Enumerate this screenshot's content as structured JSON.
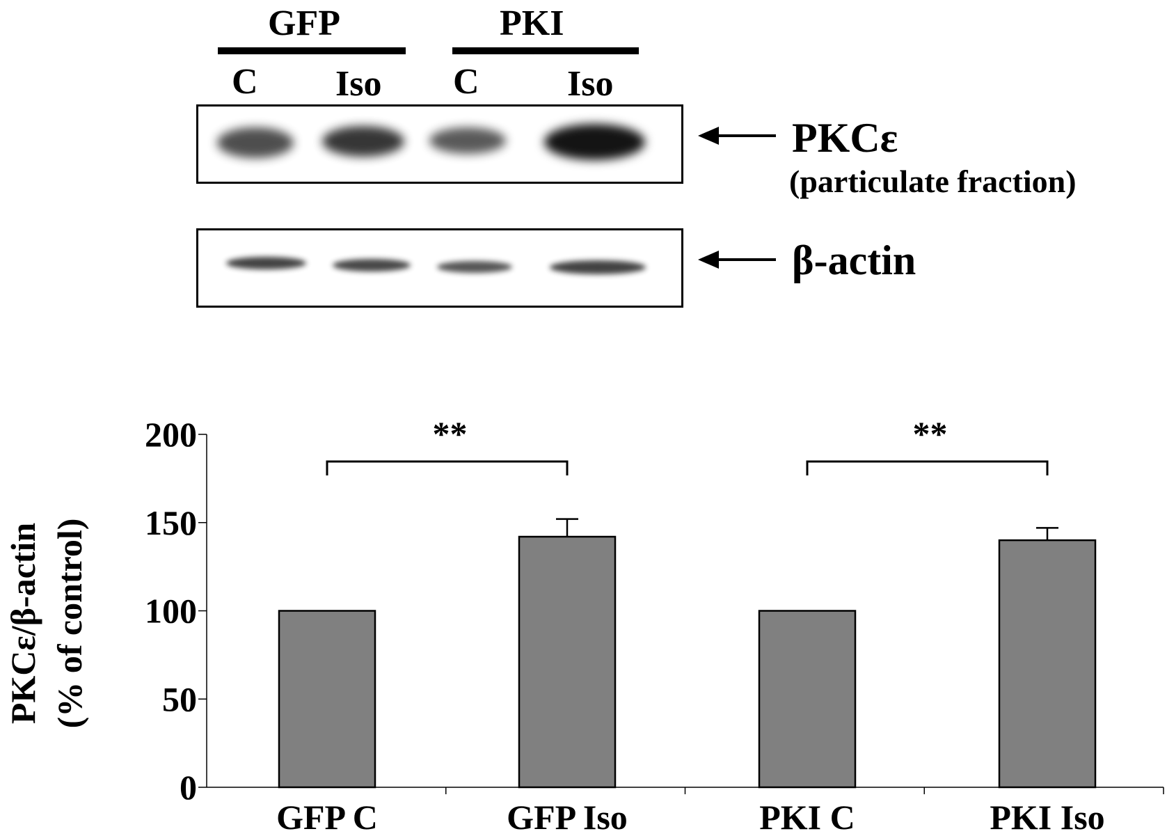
{
  "blot": {
    "groups": [
      {
        "label": "GFP"
      },
      {
        "label": "PKI"
      }
    ],
    "lanes": [
      "C",
      "Iso",
      "C",
      "Iso"
    ],
    "panels": [
      {
        "protein": "PKCε",
        "sublabel": "(particulate fraction)",
        "band_intensity": [
          0.75,
          0.85,
          0.7,
          1.0
        ]
      },
      {
        "protein": "β-actin",
        "sublabel": "",
        "band_intensity": [
          0.8,
          0.78,
          0.72,
          0.8
        ]
      }
    ]
  },
  "chart_data": {
    "type": "bar",
    "categories": [
      "GFP C",
      "GFP Iso",
      "PKI C",
      "PKI Iso"
    ],
    "values": [
      100,
      142,
      100,
      140
    ],
    "errors": [
      0,
      10,
      0,
      7
    ],
    "ylabel_line1": "PKCε/β-actin",
    "ylabel_line2": "(% of control)",
    "ylim": [
      0,
      200
    ],
    "yticks": [
      0,
      50,
      100,
      150,
      200
    ],
    "bar_color": "#808080",
    "significance": [
      {
        "from": 0,
        "to": 1,
        "label": "**"
      },
      {
        "from": 2,
        "to": 3,
        "label": "**"
      }
    ],
    "grid": false
  }
}
